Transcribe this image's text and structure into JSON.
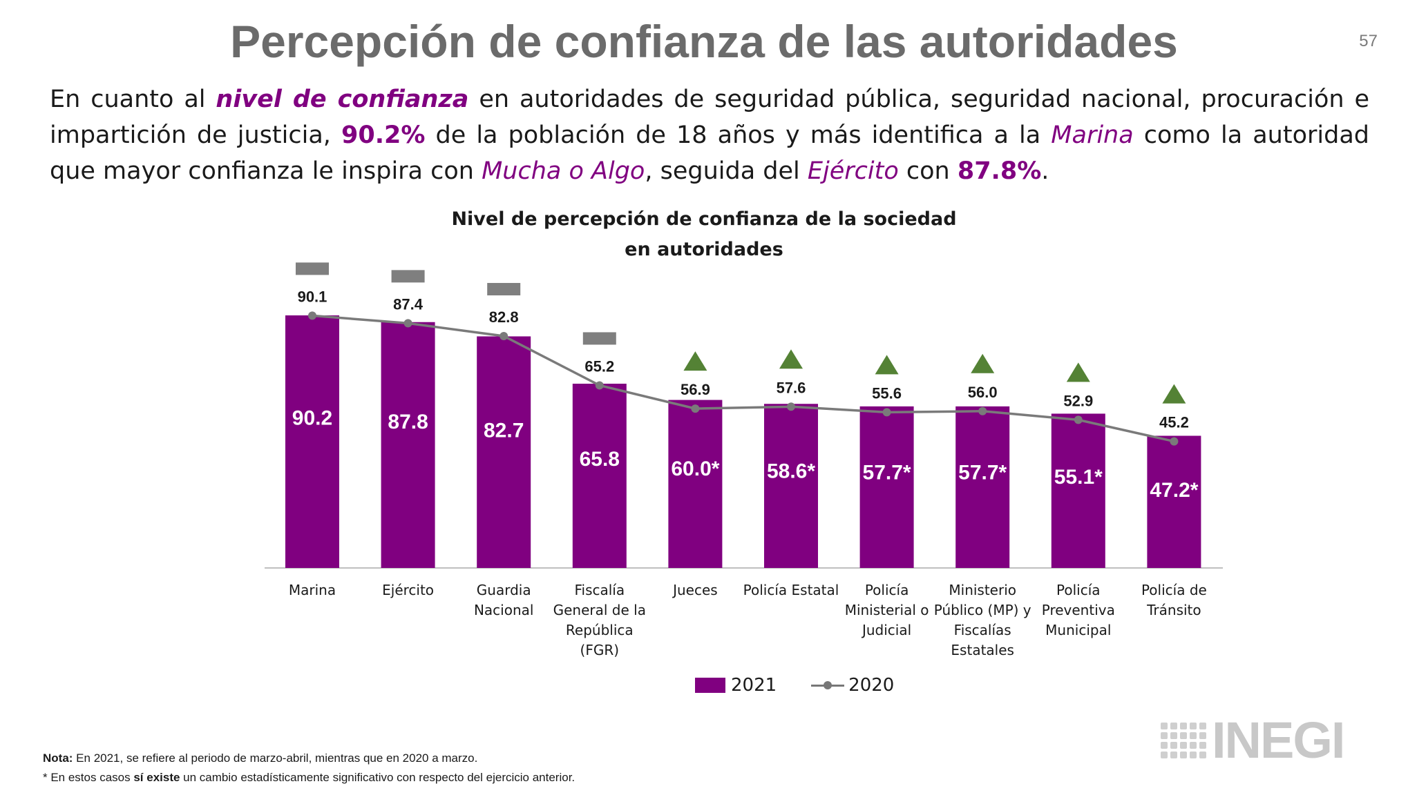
{
  "slide": {
    "title": "Percepción de confianza de las autoridades",
    "page_number": "57"
  },
  "intro": {
    "t1": "En cuanto al ",
    "t2": "nivel de confianza",
    "t3": " en autoridades de seguridad pública, seguridad nacional, procuración e impartición de justicia, ",
    "t4": "90.2%",
    "t5": " de la población de 18 años y más identifica a la ",
    "t6": "Marina",
    "t7": " como la autoridad que mayor confianza le inspira con ",
    "t8": "Mucha o Algo",
    "t9": ", seguida del ",
    "t10": "Ejército",
    "t11": " con ",
    "t12": "87.8%",
    "t13": "."
  },
  "chart_data": {
    "type": "bar",
    "title_line1": "Nivel de percepción de confianza de la sociedad",
    "title_line2": "en autoridades",
    "categories": [
      [
        "Marina"
      ],
      [
        "Ejército"
      ],
      [
        "Guardia",
        "Nacional"
      ],
      [
        "Fiscalía",
        "General de la",
        "República",
        "(FGR)"
      ],
      [
        "Jueces"
      ],
      [
        "Policía Estatal"
      ],
      [
        "Policía",
        "Ministerial o",
        "Judicial"
      ],
      [
        "Ministerio",
        "Público (MP) y",
        "Fiscalías",
        "Estatales"
      ],
      [
        "Policía",
        "Preventiva",
        "Municipal"
      ],
      [
        "Policía de",
        "Tránsito"
      ]
    ],
    "series": [
      {
        "name": "2021",
        "type": "bar",
        "color": "#800080",
        "values": [
          90.2,
          87.8,
          82.7,
          65.8,
          60.0,
          58.6,
          57.7,
          57.7,
          55.1,
          47.2
        ],
        "labels": [
          "90.2",
          "87.8",
          "82.7",
          "65.8",
          "60.0*",
          "58.6*",
          "57.7*",
          "57.7*",
          "55.1*",
          "47.2*"
        ]
      },
      {
        "name": "2020",
        "type": "line",
        "color": "#7a7a7a",
        "values": [
          90.1,
          87.4,
          82.8,
          65.2,
          56.9,
          57.6,
          55.6,
          56.0,
          52.9,
          45.2
        ],
        "labels": [
          "90.1",
          "87.4",
          "82.8",
          "65.2",
          "56.9",
          "57.6",
          "55.6",
          "56.0",
          "52.9",
          "45.2"
        ]
      }
    ],
    "change_indicators": [
      "equal",
      "equal",
      "equal",
      "equal",
      "up",
      "up",
      "up",
      "up",
      "up",
      "up"
    ],
    "indicator_colors": {
      "equal": "#7f7f7f",
      "up": "#548235"
    },
    "ylim": [
      0,
      100
    ],
    "grid": false,
    "legend": "bottom"
  },
  "notes": {
    "n1_bold": "Nota:",
    "n1_text": " En 2021, se refiere al periodo de marzo-abril, mientras que en 2020 a marzo.",
    "n2_a": "* En estos casos ",
    "n2_bold": "sí existe",
    "n2_b": " un cambio estadísticamente significativo con respecto del ejercicio anterior."
  },
  "logo": {
    "text": "INEGI"
  }
}
